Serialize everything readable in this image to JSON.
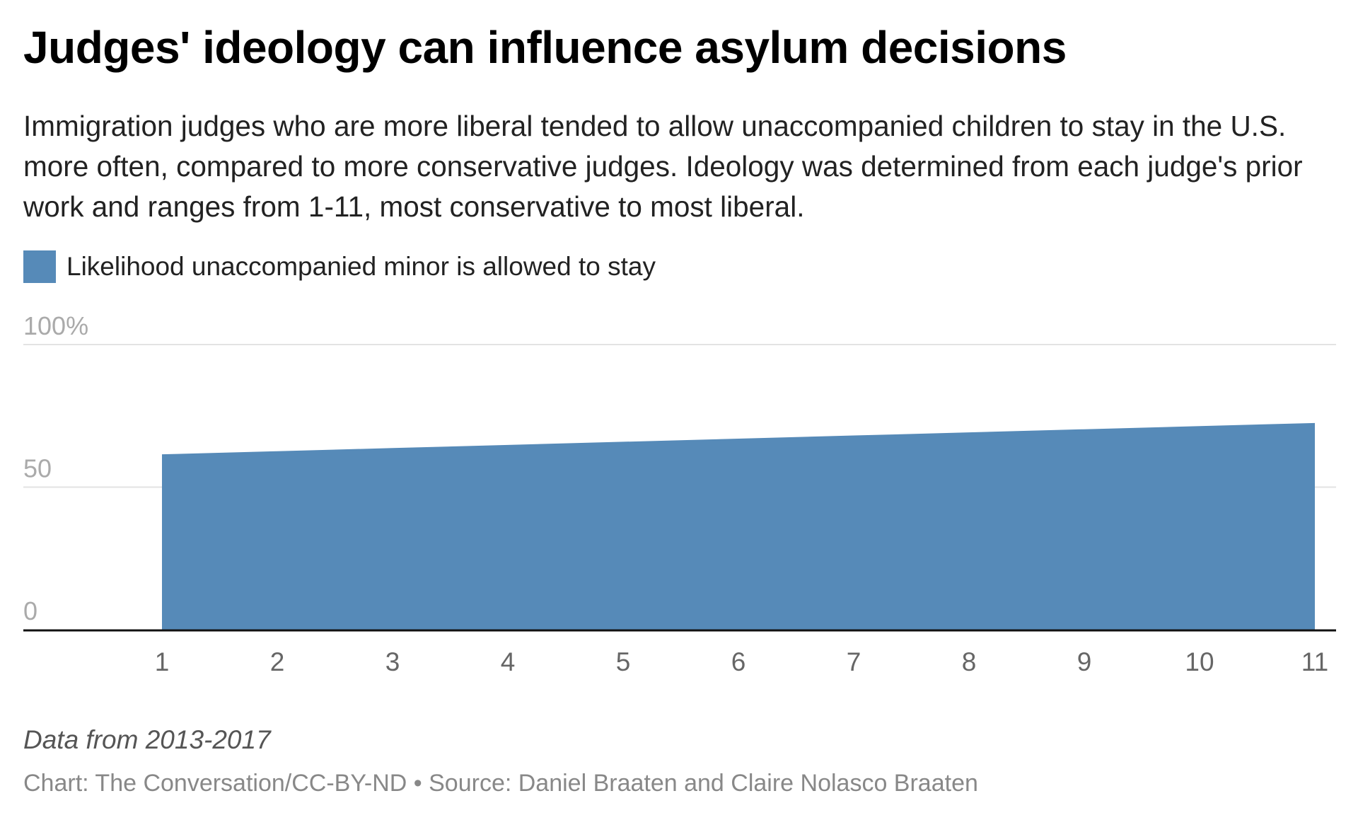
{
  "title": "Judges' ideology can influence asylum decisions",
  "subtitle": "Immigration judges who are more liberal tended to allow unaccompanied children to stay in the U.S. more often, compared to more conservative judges. Ideology was determined from each judge's prior work and ranges from 1-11, most conservative to most liberal.",
  "note": "Data from 2013-2017",
  "source": "Chart: The Conversation/CC-BY-ND • Source: Daniel Braaten and Claire Nolasco Braaten",
  "chart_data": {
    "type": "area",
    "title": "Judges' ideology can influence asylum decisions",
    "xlabel": "",
    "ylabel": "",
    "x": [
      1,
      2,
      3,
      4,
      5,
      6,
      7,
      8,
      9,
      10,
      11
    ],
    "series": [
      {
        "name": "Likelihood unaccompanied minor is allowed to stay",
        "values": [
          61.5,
          62.6,
          63.7,
          64.8,
          65.9,
          67.0,
          68.1,
          69.2,
          70.3,
          71.4,
          72.5
        ],
        "color": "#568ab8"
      }
    ],
    "y_ticks": [
      {
        "value": 0,
        "label": "0"
      },
      {
        "value": 50,
        "label": "50"
      },
      {
        "value": 100,
        "label": "100%"
      }
    ],
    "x_ticks": [
      "1",
      "2",
      "3",
      "4",
      "5",
      "6",
      "7",
      "8",
      "9",
      "10",
      "11"
    ],
    "ylim": [
      0,
      100
    ],
    "grid": true,
    "legend": "top-left"
  }
}
